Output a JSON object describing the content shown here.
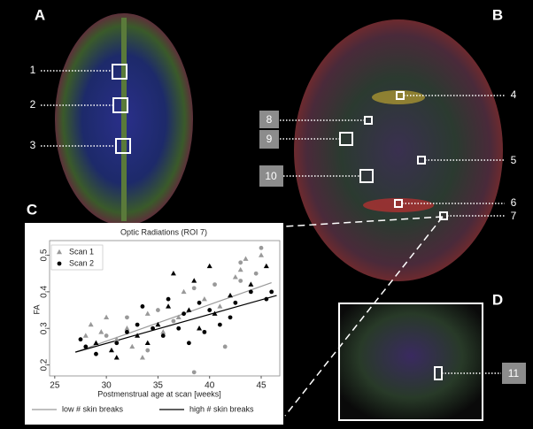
{
  "panels": [
    "A",
    "B",
    "C",
    "D"
  ],
  "roi_labels": [
    "1",
    "2",
    "3",
    "4",
    "5",
    "6",
    "7",
    "8",
    "9",
    "10",
    "11"
  ],
  "chart_data": {
    "type": "scatter",
    "title": "Optic Radiations (ROI 7)",
    "x_label": "Postmenstrual age at scan [weeks]",
    "y_label": "FA",
    "xlim": [
      24.5,
      46.8
    ],
    "xticks": [
      25,
      30,
      35,
      40,
      45
    ],
    "ylim": [
      0.17,
      0.54
    ],
    "yticks": [
      0.2,
      0.3,
      0.4,
      0.5
    ],
    "series": [
      {
        "name": "Scan 1",
        "marker": "triangle",
        "color": "#999999",
        "x": [
          28,
          28.5,
          29,
          29.5,
          30,
          30.5,
          31,
          31,
          32,
          32.5,
          33,
          33.5,
          34,
          34,
          35,
          35.5,
          36,
          36.5,
          37,
          37.5,
          38,
          38.5,
          39,
          39.5,
          40,
          40.5,
          41,
          42,
          42.5,
          43,
          43.5,
          44,
          45,
          45.5
        ],
        "values": [
          0.28,
          0.31,
          0.26,
          0.29,
          0.33,
          0.24,
          0.27,
          0.22,
          0.3,
          0.25,
          0.28,
          0.22,
          0.34,
          0.26,
          0.31,
          0.29,
          0.36,
          0.45,
          0.33,
          0.4,
          0.35,
          0.43,
          0.3,
          0.38,
          0.47,
          0.34,
          0.36,
          0.39,
          0.44,
          0.46,
          0.49,
          0.42,
          0.5,
          0.47
        ],
        "colors": [
          "#999999",
          "#999999",
          "#000000",
          "#999999",
          "#999999",
          "#000000",
          "#999999",
          "#000000",
          "#999999",
          "#999999",
          "#000000",
          "#999999",
          "#999999",
          "#000000",
          "#000000",
          "#999999",
          "#000000",
          "#000000",
          "#999999",
          "#999999",
          "#000000",
          "#000000",
          "#000000",
          "#999999",
          "#000000",
          "#000000",
          "#999999",
          "#000000",
          "#999999",
          "#999999",
          "#999999",
          "#000000",
          "#999999",
          "#000000"
        ]
      },
      {
        "name": "Scan 2",
        "marker": "circle",
        "color": "#000000",
        "x": [
          27.5,
          28,
          29,
          30,
          31,
          32,
          32,
          33,
          33.5,
          34,
          34.5,
          35,
          35.5,
          36,
          36.5,
          37,
          37.5,
          38,
          38.5,
          39,
          39.5,
          40,
          40.5,
          41,
          41.5,
          42,
          42.5,
          43,
          43,
          44,
          44.5,
          45,
          45.5,
          46,
          38.5
        ],
        "values": [
          0.27,
          0.25,
          0.23,
          0.28,
          0.26,
          0.29,
          0.33,
          0.31,
          0.36,
          0.24,
          0.3,
          0.35,
          0.28,
          0.38,
          0.32,
          0.3,
          0.34,
          0.26,
          0.41,
          0.37,
          0.29,
          0.35,
          0.42,
          0.31,
          0.25,
          0.33,
          0.37,
          0.43,
          0.48,
          0.4,
          0.45,
          0.52,
          0.38,
          0.4,
          0.18
        ],
        "colors": [
          "#000000",
          "#000000",
          "#000000",
          "#999999",
          "#000000",
          "#000000",
          "#999999",
          "#000000",
          "#000000",
          "#999999",
          "#000000",
          "#999999",
          "#000000",
          "#000000",
          "#999999",
          "#000000",
          "#000000",
          "#000000",
          "#999999",
          "#000000",
          "#000000",
          "#000000",
          "#999999",
          "#000000",
          "#999999",
          "#000000",
          "#000000",
          "#999999",
          "#999999",
          "#000000",
          "#999999",
          "#999999",
          "#000000",
          "#000000",
          "#999999"
        ]
      }
    ],
    "fits": [
      {
        "name": "low # skin breaks",
        "color": "#999999",
        "x": [
          27,
          46
        ],
        "values": [
          0.235,
          0.425
        ]
      },
      {
        "name": "high # skin breaks",
        "color": "#000000",
        "x": [
          27,
          46.5
        ],
        "values": [
          0.235,
          0.39
        ]
      }
    ]
  }
}
